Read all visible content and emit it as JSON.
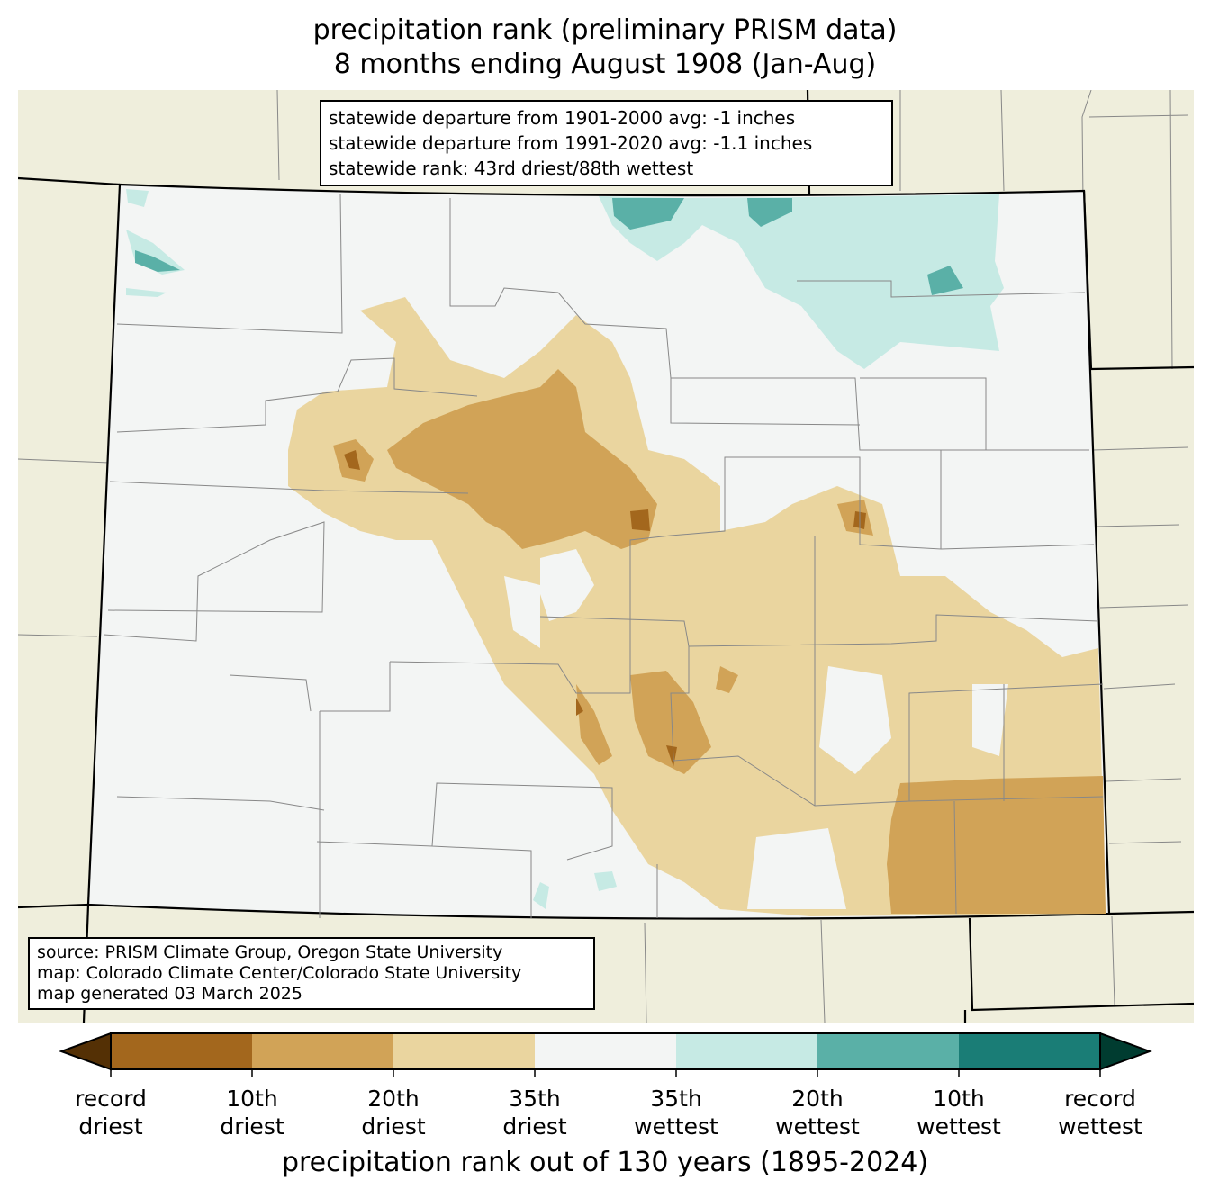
{
  "title_line1": "precipitation rank (preliminary PRISM data)",
  "title_line2": "8 months ending August 1908 (Jan-Aug)",
  "stats": [
    "statewide departure from 1901-2000 avg: -1 inches",
    "statewide departure from 1991-2020 avg: -1.1 inches",
    "statewide rank: 43rd driest/88th wettest"
  ],
  "source": [
    "source: PRISM Climate Group, Oregon State University",
    "map: Colorado Climate Center/Colorado State University",
    "map generated 03 March 2025"
  ],
  "colorbar": {
    "label": "precipitation rank out of 130 years (1895-2024)",
    "under_color": "#543005",
    "over_color": "#003c30",
    "colors": [
      "#a3671d",
      "#d1a357",
      "#ead59f",
      "#f3f5f4",
      "#c6eae4",
      "#5ab0a7",
      "#1a7d76"
    ],
    "ticks": [
      [
        "record",
        "driest"
      ],
      [
        "10th",
        "driest"
      ],
      [
        "20th",
        "driest"
      ],
      [
        "35th",
        "driest"
      ],
      [
        "35th",
        "wettest"
      ],
      [
        "20th",
        "wettest"
      ],
      [
        "10th",
        "wettest"
      ],
      [
        "record",
        "wettest"
      ]
    ]
  },
  "colors": {
    "background_land": "#efeedc",
    "state_fill": "#f3f5f4"
  }
}
